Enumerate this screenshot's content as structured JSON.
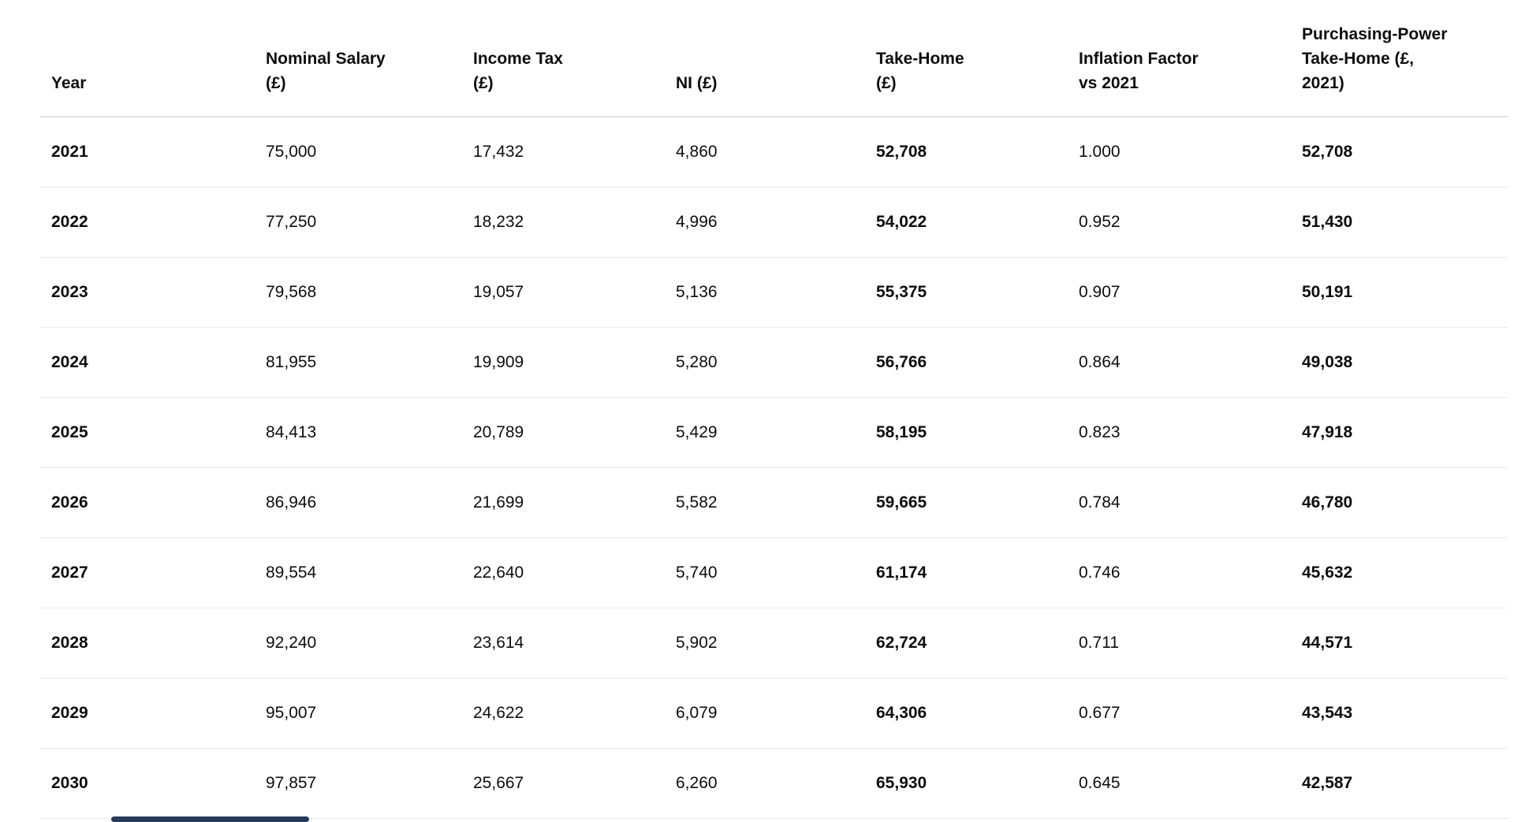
{
  "table": {
    "headers": [
      "Year",
      "Nominal Salary\n(£)",
      "Income Tax\n(£)",
      "NI (£)",
      "Take-Home\n(£)",
      "Inflation Factor\nvs 2021",
      "Purchasing-Power\nTake-Home (£,\n2021)"
    ]
  },
  "chart_data": {
    "type": "table",
    "columns": [
      "Year",
      "Nominal Salary (£)",
      "Income Tax (£)",
      "NI (£)",
      "Take-Home (£)",
      "Inflation Factor vs 2021",
      "Purchasing-Power Take-Home (£, 2021)"
    ],
    "rows": [
      [
        "2021",
        "75,000",
        "17,432",
        "4,860",
        "52,708",
        "1.000",
        "52,708"
      ],
      [
        "2022",
        "77,250",
        "18,232",
        "4,996",
        "54,022",
        "0.952",
        "51,430"
      ],
      [
        "2023",
        "79,568",
        "19,057",
        "5,136",
        "55,375",
        "0.907",
        "50,191"
      ],
      [
        "2024",
        "81,955",
        "19,909",
        "5,280",
        "56,766",
        "0.864",
        "49,038"
      ],
      [
        "2025",
        "84,413",
        "20,789",
        "5,429",
        "58,195",
        "0.823",
        "47,918"
      ],
      [
        "2026",
        "86,946",
        "21,699",
        "5,582",
        "59,665",
        "0.784",
        "46,780"
      ],
      [
        "2027",
        "89,554",
        "22,640",
        "5,740",
        "61,174",
        "0.746",
        "45,632"
      ],
      [
        "2028",
        "92,240",
        "23,614",
        "5,902",
        "62,724",
        "0.711",
        "44,571"
      ],
      [
        "2029",
        "95,007",
        "24,622",
        "6,079",
        "64,306",
        "0.677",
        "43,543"
      ],
      [
        "2030",
        "97,857",
        "25,667",
        "6,260",
        "65,930",
        "0.645",
        "42,587"
      ]
    ],
    "bold_columns": [
      "Year",
      "Take-Home (£)",
      "Purchasing-Power Take-Home (£, 2021)"
    ],
    "grid": "horizontal-separators-only",
    "colors": {
      "text": "#0d0d0d",
      "row_separator": "#e9e9e9",
      "header_separator": "#e2e2e2",
      "scrollbar_thumb": "#263a5e",
      "background": "#ffffff"
    }
  }
}
